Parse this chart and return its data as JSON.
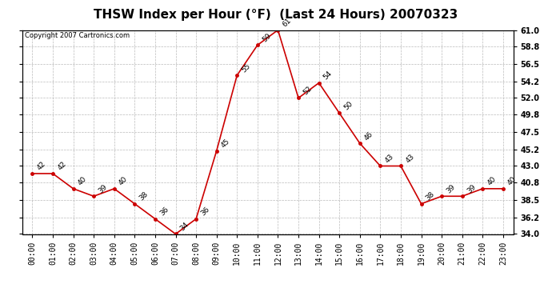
{
  "title": "THSW Index per Hour (°F)  (Last 24 Hours) 20070323",
  "copyright_text": "Copyright 2007 Cartronics.com",
  "hours": [
    0,
    1,
    2,
    3,
    4,
    5,
    6,
    7,
    8,
    9,
    10,
    11,
    12,
    13,
    14,
    15,
    16,
    17,
    18,
    19,
    20,
    21,
    22,
    23
  ],
  "values": [
    42,
    42,
    40,
    39,
    40,
    38,
    36,
    34,
    36,
    45,
    55,
    59,
    61,
    52,
    54,
    50,
    46,
    43,
    43,
    38,
    39,
    39,
    40,
    40
  ],
  "x_labels": [
    "00:00",
    "01:00",
    "02:00",
    "03:00",
    "04:00",
    "05:00",
    "06:00",
    "07:00",
    "08:00",
    "09:00",
    "10:00",
    "11:00",
    "12:00",
    "13:00",
    "14:00",
    "15:00",
    "16:00",
    "17:00",
    "18:00",
    "19:00",
    "20:00",
    "21:00",
    "22:00",
    "23:00"
  ],
  "ylim": [
    34.0,
    61.0
  ],
  "yticks": [
    34.0,
    36.2,
    38.5,
    40.8,
    43.0,
    45.2,
    47.5,
    49.8,
    52.0,
    54.2,
    56.5,
    58.8,
    61.0
  ],
  "ytick_labels": [
    "34.0",
    "36.2",
    "38.5",
    "40.8",
    "43.0",
    "45.2",
    "47.5",
    "49.8",
    "52.0",
    "54.2",
    "56.5",
    "58.8",
    "61.0"
  ],
  "line_color": "#cc0000",
  "marker_color": "#cc0000",
  "bg_color": "#ffffff",
  "grid_color": "#bbbbbb",
  "title_fontsize": 11,
  "label_fontsize": 7,
  "annot_fontsize": 6.5,
  "copyright_fontsize": 6
}
